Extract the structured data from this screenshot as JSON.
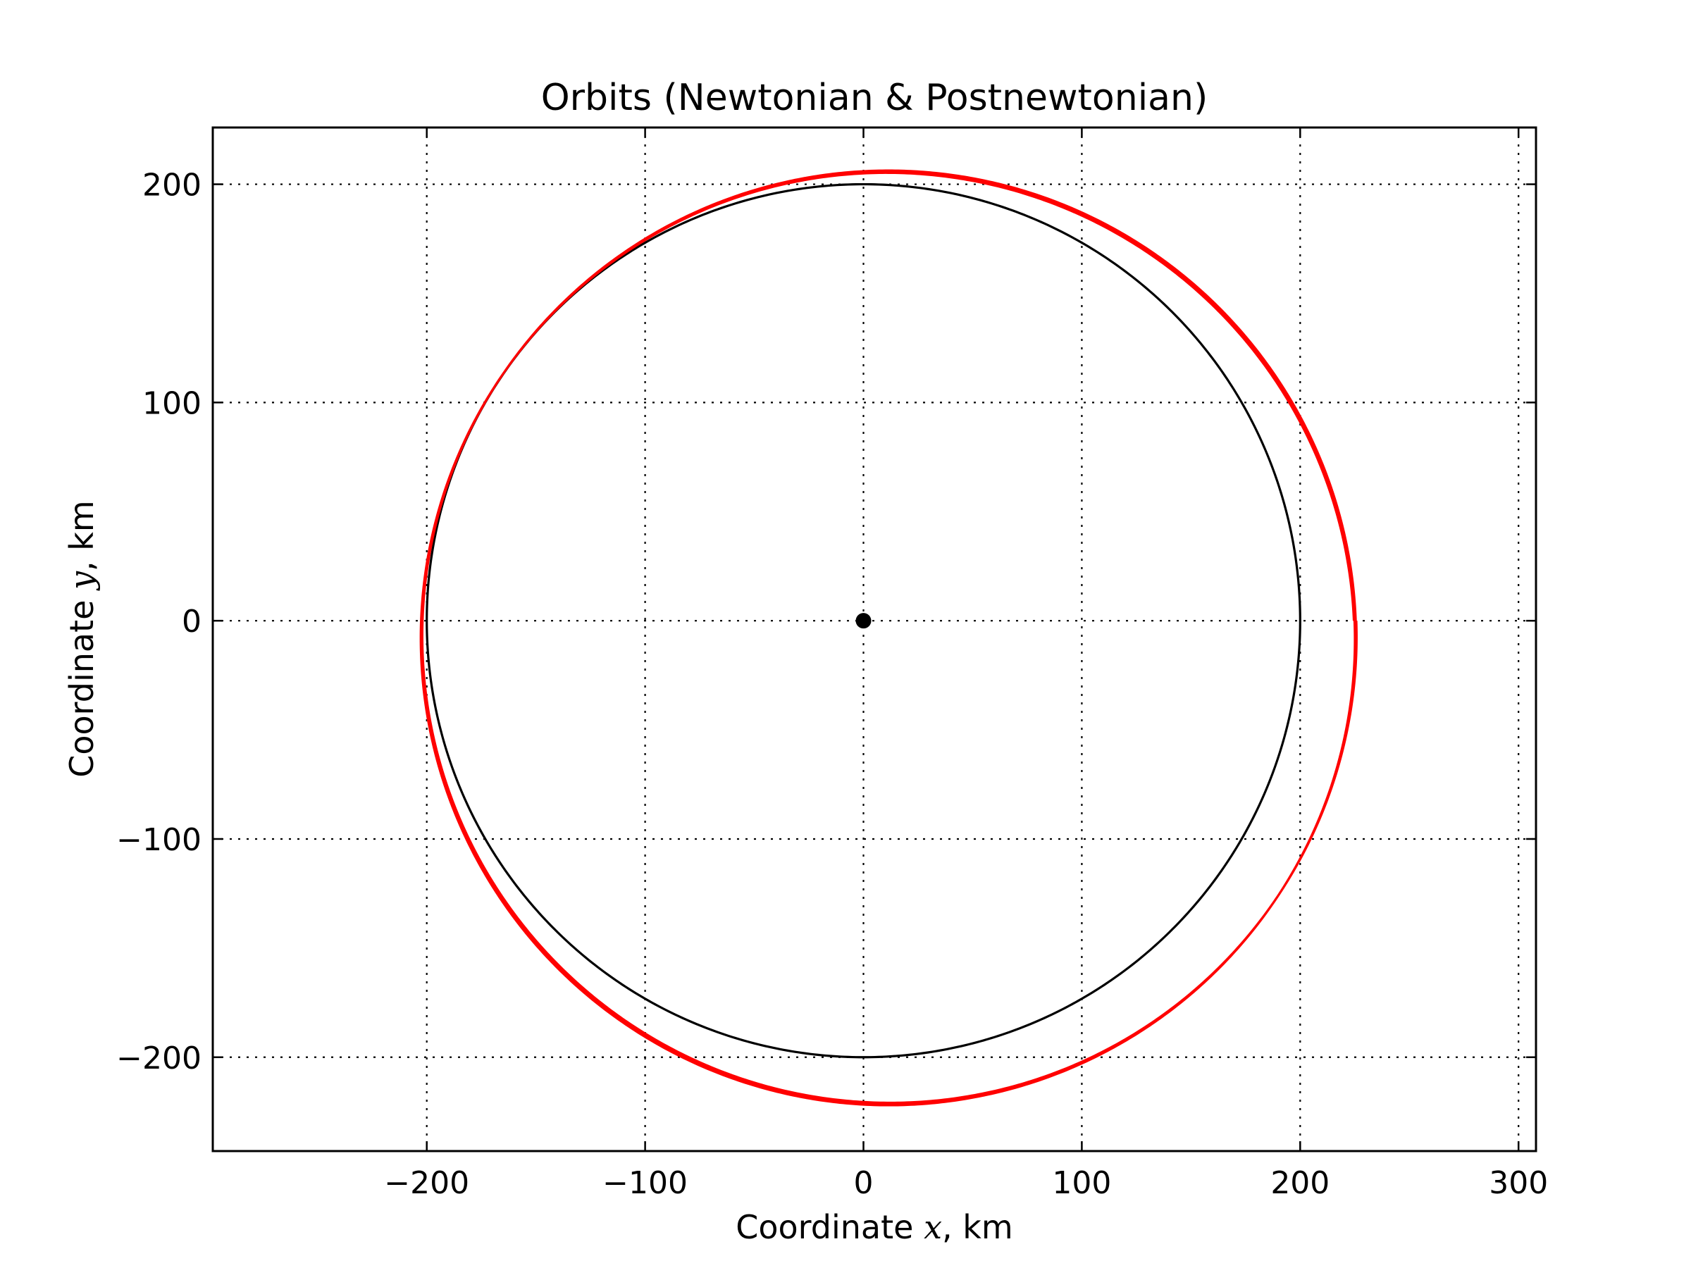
{
  "chart_data": {
    "type": "line",
    "title": "Orbits (Newtonian & Postnewtonian)",
    "xlabel_prefix": "Coordinate ",
    "xlabel_var": "x",
    "xlabel_suffix": ", km",
    "ylabel_prefix": "Coordinate ",
    "ylabel_var": "y",
    "ylabel_suffix": ", km",
    "xlim": [
      -298,
      308
    ],
    "ylim": [
      -243,
      226
    ],
    "xticks": [
      -200,
      -100,
      0,
      100,
      200,
      300
    ],
    "yticks": [
      -200,
      -100,
      0,
      100,
      200
    ],
    "xtick_labels": [
      "−200",
      "−100",
      "0",
      "100",
      "200",
      "300"
    ],
    "ytick_labels": [
      "−200",
      "−100",
      "0",
      "100",
      "200"
    ],
    "grid": true,
    "central_body": {
      "x": 0,
      "y": 0,
      "color": "#000000"
    },
    "series": [
      {
        "kind": "newtonian-circle",
        "color": "#000000",
        "center": [
          0,
          0
        ],
        "radius": 200
      },
      {
        "kind": "postnewtonian-precessing-ellipse",
        "color": "#ff0000",
        "semi_major_axis": 214,
        "eccentricity": 0.065,
        "periapsis_direction_deg": 142,
        "precession_per_orbit_deg": 1.8,
        "orbits": 4
      }
    ]
  }
}
